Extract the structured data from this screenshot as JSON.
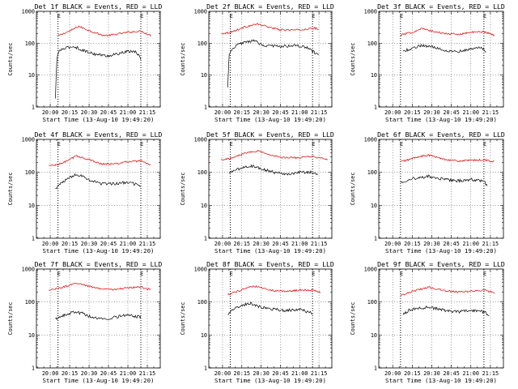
{
  "figure": {
    "colors": {
      "events": "#000000",
      "lld": "#e00000",
      "axes": "#000000",
      "grid": "#000000"
    }
  },
  "chart_data": [
    {
      "type": "line",
      "title": "Det 1f BLACK = Events, RED = LLD",
      "xlabel": "Start Time (13-Aug-10 19:49:20)",
      "ylabel": "Counts/sec",
      "yscale": "log",
      "ylim": [
        1,
        1000
      ],
      "x_tick_labels": [
        "20:00",
        "20:15",
        "20:30",
        "20:45",
        "21:00",
        "21:15"
      ],
      "y_tick_labels": [
        "1",
        "10",
        "100",
        "1000"
      ],
      "vertical_markers": [
        {
          "time": "20:06",
          "label": "E"
        },
        {
          "time": "21:10",
          "label": "E"
        }
      ],
      "series": [
        {
          "name": "LLD",
          "color": "#e00000",
          "x": [
            "20:06",
            "20:15",
            "20:22",
            "20:30",
            "20:40",
            "20:45",
            "21:00",
            "21:10",
            "21:18"
          ],
          "values": [
            170,
            240,
            340,
            250,
            180,
            175,
            220,
            240,
            175
          ]
        },
        {
          "name": "Events",
          "color": "#000000",
          "x": [
            "20:04",
            "20:05",
            "20:07",
            "20:12",
            "20:18",
            "20:25",
            "20:35",
            "20:45",
            "21:00",
            "21:05",
            "21:08",
            "21:10"
          ],
          "values": [
            1.8,
            30,
            60,
            70,
            80,
            60,
            45,
            40,
            55,
            55,
            45,
            28
          ]
        }
      ]
    },
    {
      "type": "line",
      "title": "Det 2f BLACK = Events, RED = LLD",
      "xlabel": "Start Time (13-Aug-10 19:49:20)",
      "ylabel": "Counts/sec",
      "yscale": "log",
      "ylim": [
        1,
        1000
      ],
      "x_tick_labels": [
        "20:00",
        "20:15",
        "20:30",
        "20:45",
        "21:00",
        "21:15"
      ],
      "y_tick_labels": [
        "1",
        "10",
        "100",
        "1000"
      ],
      "vertical_markers": [
        {
          "time": "20:06",
          "label": "E"
        },
        {
          "time": "21:10",
          "label": "E"
        }
      ],
      "series": [
        {
          "name": "LLD",
          "color": "#e00000",
          "x": [
            "19:59",
            "20:05",
            "20:10",
            "20:18",
            "20:27",
            "20:35",
            "20:45",
            "21:00",
            "21:12",
            "21:15"
          ],
          "values": [
            200,
            215,
            250,
            330,
            400,
            330,
            260,
            260,
            300,
            260
          ]
        },
        {
          "name": "Events",
          "color": "#000000",
          "x": [
            "20:04",
            "20:05",
            "20:07",
            "20:12",
            "20:18",
            "20:24",
            "20:32",
            "20:45",
            "20:55",
            "21:05",
            "21:10",
            "21:15"
          ],
          "values": [
            4,
            40,
            60,
            90,
            110,
            120,
            85,
            80,
            85,
            75,
            55,
            40
          ]
        }
      ]
    },
    {
      "type": "line",
      "title": "Det 3f BLACK = Events, RED = LLD",
      "xlabel": "Start Time (13-Aug-10 19:49:20)",
      "ylabel": "Counts/sec",
      "yscale": "log",
      "ylim": [
        1,
        1000
      ],
      "x_tick_labels": [
        "20:00",
        "20:15",
        "20:30",
        "20:45",
        "21:00",
        "21:15"
      ],
      "y_tick_labels": [
        "1",
        "10",
        "100",
        "1000"
      ],
      "vertical_markers": [
        {
          "time": "20:06",
          "label": "E"
        },
        {
          "time": "21:10",
          "label": "E"
        }
      ],
      "series": [
        {
          "name": "LLD",
          "color": "#e00000",
          "x": [
            "20:06",
            "20:15",
            "20:22",
            "20:30",
            "20:40",
            "20:50",
            "21:00",
            "21:10",
            "21:18"
          ],
          "values": [
            180,
            220,
            290,
            240,
            200,
            190,
            220,
            230,
            180
          ]
        },
        {
          "name": "Events",
          "color": "#000000",
          "x": [
            "20:08",
            "20:15",
            "20:22",
            "20:30",
            "20:40",
            "20:50",
            "21:00",
            "21:08",
            "21:12"
          ],
          "values": [
            55,
            70,
            85,
            80,
            60,
            55,
            65,
            75,
            55
          ]
        }
      ]
    },
    {
      "type": "line",
      "title": "Det 4f BLACK = Events, RED = LLD",
      "xlabel": "Start Time (13-Aug-10 19:49:20)",
      "ylabel": "Counts/sec",
      "yscale": "log",
      "ylim": [
        1,
        1000
      ],
      "x_tick_labels": [
        "20:00",
        "20:15",
        "20:30",
        "20:45",
        "21:00",
        "21:15"
      ],
      "y_tick_labels": [
        "1",
        "10",
        "100",
        "1000"
      ],
      "vertical_markers": [
        {
          "time": "20:06",
          "label": "E"
        },
        {
          "time": "21:10",
          "label": "E"
        }
      ],
      "series": [
        {
          "name": "LLD",
          "color": "#e00000",
          "x": [
            "19:59",
            "20:06",
            "20:15",
            "20:20",
            "20:30",
            "20:40",
            "20:50",
            "21:00",
            "21:10",
            "21:18"
          ],
          "values": [
            160,
            170,
            240,
            320,
            240,
            180,
            180,
            210,
            220,
            160
          ]
        },
        {
          "name": "Events",
          "color": "#000000",
          "x": [
            "20:04",
            "20:08",
            "20:15",
            "20:20",
            "20:30",
            "20:40",
            "20:50",
            "21:00",
            "21:10"
          ],
          "values": [
            32,
            45,
            70,
            90,
            60,
            45,
            45,
            50,
            40
          ]
        }
      ]
    },
    {
      "type": "line",
      "title": "Det 5f BLACK = Events, RED = LLD",
      "xlabel": "Start Time (13-Aug-10 19:49:20)",
      "ylabel": "Counts/sec",
      "yscale": "log",
      "ylim": [
        1,
        1000
      ],
      "x_tick_labels": [
        "20:00",
        "20:15",
        "20:30",
        "20:45",
        "21:00",
        "21:15"
      ],
      "y_tick_labels": [
        "1",
        "10",
        "100",
        "1000"
      ],
      "vertical_markers": [
        {
          "time": "20:06",
          "label": "E"
        },
        {
          "time": "21:10",
          "label": "E"
        }
      ],
      "series": [
        {
          "name": "LLD",
          "color": "#e00000",
          "x": [
            "19:59",
            "20:06",
            "20:12",
            "20:20",
            "20:28",
            "20:35",
            "20:45",
            "21:00",
            "21:10",
            "21:18",
            "21:22"
          ],
          "values": [
            250,
            260,
            320,
            420,
            450,
            360,
            280,
            280,
            300,
            260,
            250
          ]
        },
        {
          "name": "Events",
          "color": "#000000",
          "x": [
            "20:05",
            "20:10",
            "20:17",
            "20:22",
            "20:30",
            "20:40",
            "20:50",
            "21:00",
            "21:10",
            "21:14"
          ],
          "values": [
            90,
            120,
            140,
            160,
            130,
            100,
            90,
            100,
            100,
            80
          ]
        }
      ]
    },
    {
      "type": "line",
      "title": "Det 6f BLACK = Events, RED = LLD",
      "xlabel": "Start Time (13-Aug-10 19:49:20)",
      "ylabel": "Counts/sec",
      "yscale": "log",
      "ylim": [
        1,
        1000
      ],
      "x_tick_labels": [
        "20:00",
        "20:15",
        "20:30",
        "20:45",
        "21:00",
        "21:15"
      ],
      "y_tick_labels": [
        "1",
        "10",
        "100",
        "1000"
      ],
      "vertical_markers": [
        {
          "time": "20:06",
          "label": "E"
        },
        {
          "time": "21:10",
          "label": "E"
        }
      ],
      "series": [
        {
          "name": "LLD",
          "color": "#e00000",
          "x": [
            "20:06",
            "20:12",
            "20:20",
            "20:28",
            "20:40",
            "20:50",
            "21:00",
            "21:10",
            "21:18"
          ],
          "values": [
            210,
            240,
            300,
            330,
            250,
            220,
            230,
            240,
            210
          ]
        },
        {
          "name": "Events",
          "color": "#000000",
          "x": [
            "20:06",
            "20:12",
            "20:20",
            "20:28",
            "20:40",
            "20:50",
            "21:00",
            "21:10",
            "21:13"
          ],
          "values": [
            50,
            60,
            70,
            75,
            60,
            55,
            60,
            55,
            35
          ]
        }
      ]
    },
    {
      "type": "line",
      "title": "Det 7f BLACK = Events, RED = LLD",
      "xlabel": "Start Time (13-Aug-10 19:49:20)",
      "ylabel": "Counts/sec",
      "yscale": "log",
      "ylim": [
        1,
        1000
      ],
      "x_tick_labels": [
        "20:00",
        "20:15",
        "20:30",
        "20:45",
        "21:00",
        "21:15"
      ],
      "y_tick_labels": [
        "1",
        "10",
        "100",
        "1000"
      ],
      "vertical_markers": [
        {
          "time": "20:06",
          "label": "E"
        },
        {
          "time": "21:10",
          "label": "E"
        }
      ],
      "series": [
        {
          "name": "LLD",
          "color": "#e00000",
          "x": [
            "19:59",
            "20:06",
            "20:15",
            "20:22",
            "20:30",
            "20:40",
            "20:50",
            "21:00",
            "21:10",
            "21:18"
          ],
          "values": [
            230,
            260,
            320,
            380,
            300,
            250,
            240,
            270,
            280,
            240
          ]
        },
        {
          "name": "Events",
          "color": "#000000",
          "x": [
            "20:04",
            "20:10",
            "20:18",
            "20:25",
            "20:32",
            "20:40",
            "20:50",
            "21:00",
            "21:10"
          ],
          "values": [
            30,
            38,
            50,
            45,
            35,
            30,
            35,
            40,
            35
          ]
        }
      ]
    },
    {
      "type": "line",
      "title": "Det 8f BLACK = Events, RED = LLD",
      "xlabel": "Start Time (13-Aug-10 19:49:20)",
      "ylabel": "Counts/sec",
      "yscale": "log",
      "ylim": [
        1,
        1000
      ],
      "x_tick_labels": [
        "20:00",
        "20:15",
        "20:30",
        "20:45",
        "21:00",
        "21:15"
      ],
      "y_tick_labels": [
        "1",
        "10",
        "100",
        "1000"
      ],
      "vertical_markers": [
        {
          "time": "20:06",
          "label": "E"
        },
        {
          "time": "21:10",
          "label": "E"
        }
      ],
      "series": [
        {
          "name": "LLD",
          "color": "#e00000",
          "x": [
            "20:04",
            "20:10",
            "20:18",
            "20:25",
            "20:32",
            "20:40",
            "20:50",
            "21:00",
            "21:10",
            "21:16"
          ],
          "values": [
            170,
            200,
            260,
            300,
            260,
            220,
            210,
            230,
            230,
            200
          ]
        },
        {
          "name": "Events",
          "color": "#000000",
          "x": [
            "20:04",
            "20:08",
            "20:15",
            "20:22",
            "20:30",
            "20:40",
            "20:50",
            "21:00",
            "21:10"
          ],
          "values": [
            40,
            60,
            80,
            90,
            70,
            60,
            55,
            60,
            45
          ]
        }
      ]
    },
    {
      "type": "line",
      "title": "Det 9f BLACK = Events, RED = LLD",
      "xlabel": "Start Time (13-Aug-10 19:49:20)",
      "ylabel": "Counts/sec",
      "yscale": "log",
      "ylim": [
        1,
        1000
      ],
      "x_tick_labels": [
        "20:00",
        "20:15",
        "20:30",
        "20:45",
        "21:00",
        "21:15"
      ],
      "y_tick_labels": [
        "1",
        "10",
        "100",
        "1000"
      ],
      "vertical_markers": [
        {
          "time": "20:06",
          "label": "E"
        },
        {
          "time": "21:10",
          "label": "E"
        }
      ],
      "series": [
        {
          "name": "LLD",
          "color": "#e00000",
          "x": [
            "20:06",
            "20:12",
            "20:20",
            "20:28",
            "20:40",
            "20:50",
            "21:00",
            "21:10",
            "21:18"
          ],
          "values": [
            160,
            190,
            240,
            280,
            220,
            200,
            210,
            230,
            190
          ]
        },
        {
          "name": "Events",
          "color": "#000000",
          "x": [
            "20:08",
            "20:12",
            "20:20",
            "20:28",
            "20:40",
            "20:50",
            "21:00",
            "21:10",
            "21:14"
          ],
          "values": [
            40,
            55,
            65,
            70,
            55,
            50,
            55,
            50,
            40
          ]
        }
      ]
    }
  ]
}
